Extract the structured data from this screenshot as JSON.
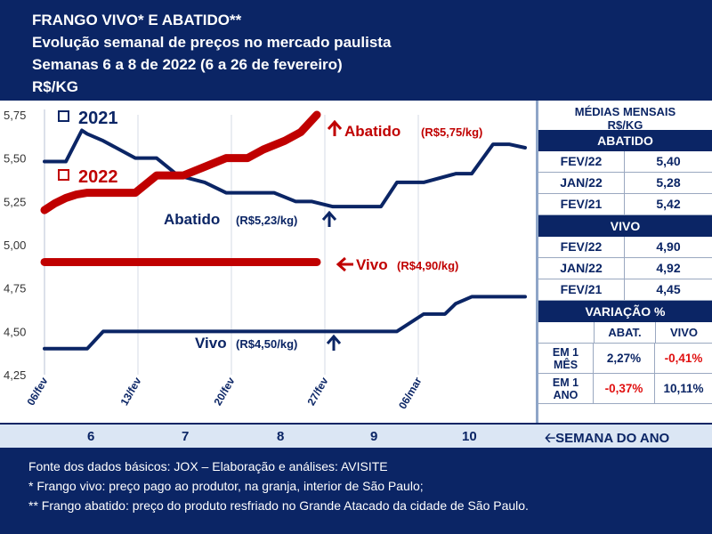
{
  "header": {
    "line1": "FRANGO VIVO* E ABATIDO**",
    "line2": "Evolução semanal de preços no mercado paulista",
    "line3": "Semanas 6 a 8 de 2022 (6 a 26 de fevereiro)",
    "line4": "R$/KG"
  },
  "chart_data": {
    "type": "line",
    "ylim": [
      4.25,
      5.75
    ],
    "yticks": [
      "4,25",
      "4,50",
      "4,75",
      "5,00",
      "5,25",
      "5,50",
      "5,75"
    ],
    "x_labels": [
      "06/fev",
      "13/fev",
      "20/fev",
      "27/fev",
      "06/mar"
    ],
    "legend": {
      "y2021": "2021",
      "y2022": "2022"
    },
    "colors": {
      "y2021": "#0b2565",
      "y2022": "#c00000",
      "arrow_up_2021": "#0b2565",
      "arrow_2022": "#c00000"
    },
    "series": [
      {
        "name": "2021",
        "metric": "Abatido",
        "x": [
          0,
          4,
          7,
          8,
          11,
          17,
          21,
          25,
          30,
          34,
          38,
          43,
          47,
          50,
          54,
          56,
          63,
          66,
          71,
          77,
          80,
          84,
          87,
          90
        ],
        "y": [
          5.48,
          5.48,
          5.66,
          5.64,
          5.6,
          5.5,
          5.5,
          5.4,
          5.36,
          5.3,
          5.3,
          5.3,
          5.25,
          5.25,
          5.22,
          5.22,
          5.22,
          5.36,
          5.36,
          5.41,
          5.41,
          5.58,
          5.58,
          5.56
        ]
      },
      {
        "name": "2021",
        "metric": "Vivo",
        "x": [
          0,
          8,
          11,
          23,
          60,
          63,
          66,
          71,
          75,
          77,
          80,
          84,
          87,
          90
        ],
        "y": [
          4.4,
          4.4,
          4.5,
          4.5,
          4.5,
          4.5,
          4.5,
          4.6,
          4.6,
          4.66,
          4.7,
          4.7,
          4.7,
          4.7
        ]
      },
      {
        "name": "2022",
        "metric": "Abatido",
        "x": [
          0,
          2,
          4,
          6,
          8,
          10,
          14,
          17,
          19,
          21,
          23,
          26,
          30,
          34,
          38,
          41,
          45,
          48,
          51
        ],
        "y": [
          5.2,
          5.24,
          5.27,
          5.29,
          5.3,
          5.3,
          5.3,
          5.3,
          5.35,
          5.4,
          5.4,
          5.4,
          5.45,
          5.5,
          5.5,
          5.55,
          5.6,
          5.65,
          5.75
        ]
      },
      {
        "name": "2022",
        "metric": "Vivo",
        "x": [
          0,
          51
        ],
        "y": [
          4.9,
          4.9
        ]
      }
    ],
    "annotations": {
      "abatido_2022": {
        "label": "Abatido",
        "value": "(R$5,75/kg)"
      },
      "abatido_2021": {
        "label": "Abatido",
        "value": "(R$5,23/kg)"
      },
      "vivo_2022": {
        "label": "Vivo",
        "value": "(R$4,90/kg)"
      },
      "vivo_2021": {
        "label": "Vivo",
        "value": "(R$4,50/kg)"
      }
    }
  },
  "panel": {
    "title_line1": "MÉDIAS MENSAIS",
    "title_line2": "R$/KG",
    "abatido": {
      "heading": "ABATIDO",
      "rows": [
        {
          "label": "FEV/22",
          "value": "5,40"
        },
        {
          "label": "JAN/22",
          "value": "5,28"
        },
        {
          "label": "FEV/21",
          "value": "5,42"
        }
      ]
    },
    "vivo": {
      "heading": "VIVO",
      "rows": [
        {
          "label": "FEV/22",
          "value": "4,90"
        },
        {
          "label": "JAN/22",
          "value": "4,92"
        },
        {
          "label": "FEV/21",
          "value": "4,45"
        }
      ]
    },
    "variacao": {
      "heading": "VARIAÇÃO %",
      "col_abat": "ABAT.",
      "col_vivo": "VIVO",
      "rows": [
        {
          "l1": "EM 1",
          "l2": "MÊS",
          "abat": "2,27%",
          "vivo": "-0,41%"
        },
        {
          "l1": "EM 1",
          "l2": "ANO",
          "abat": "-0,37%",
          "vivo": "10,11%"
        }
      ]
    }
  },
  "week_bar": {
    "weeks": [
      "6",
      "7",
      "8",
      "9",
      "10"
    ],
    "label": "SEMANA DO ANO"
  },
  "footer": {
    "line1": "Fonte dos dados básicos: JOX – Elaboração e análises: AVISITE",
    "line2": "*   Frango vivo: preço pago ao produtor, na granja, interior de São Paulo;",
    "line3": "** Frango abatido: preço do produto resfriado no Grande Atacado da cidade de São Paulo."
  }
}
